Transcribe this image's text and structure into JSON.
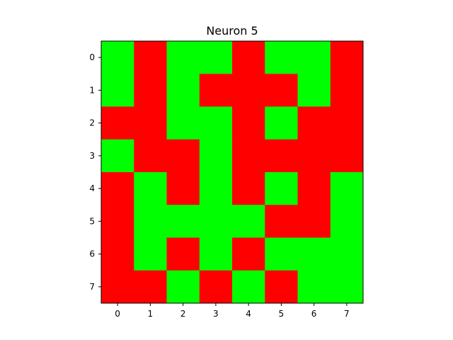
{
  "chart_data": {
    "type": "heatmap",
    "title": "Neuron 5",
    "xlabel": "",
    "ylabel": "",
    "x_ticks": [
      "0",
      "1",
      "2",
      "3",
      "4",
      "5",
      "6",
      "7"
    ],
    "y_ticks": [
      "0",
      "1",
      "2",
      "3",
      "4",
      "5",
      "6",
      "7"
    ],
    "grid": false,
    "legend": "none",
    "value_colors": {
      "0": "#ff0000",
      "1": "#00ff00"
    },
    "values": [
      [
        1,
        0,
        1,
        1,
        0,
        1,
        1,
        0
      ],
      [
        1,
        0,
        1,
        0,
        0,
        0,
        1,
        0
      ],
      [
        0,
        0,
        1,
        1,
        0,
        1,
        0,
        0
      ],
      [
        1,
        0,
        0,
        1,
        0,
        0,
        0,
        0
      ],
      [
        0,
        1,
        0,
        1,
        0,
        1,
        0,
        1
      ],
      [
        0,
        1,
        1,
        1,
        1,
        0,
        0,
        1
      ],
      [
        0,
        1,
        0,
        1,
        0,
        1,
        1,
        1
      ],
      [
        0,
        0,
        1,
        0,
        1,
        0,
        1,
        1
      ]
    ]
  }
}
